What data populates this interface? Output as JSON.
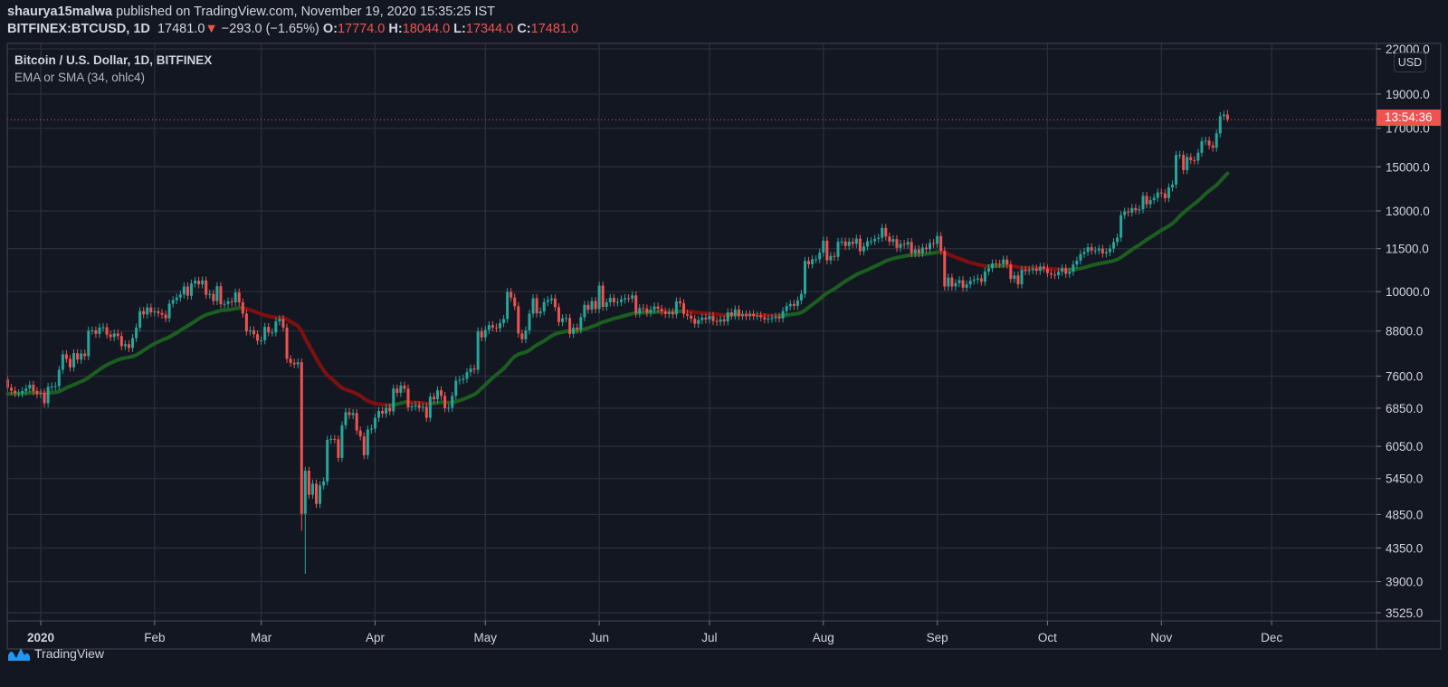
{
  "header": {
    "author": "shaurya15malwa",
    "published": "published on TradingView.com, November 19, 2020 15:35:25 IST",
    "symbol": "BITFINEX:BTCUSD, 1D",
    "last": "17481.0",
    "change": "−293.0 (−1.65%)",
    "o_label": "O:",
    "o": "17774.0",
    "h_label": "H:",
    "h": "18044.0",
    "l_label": "L:",
    "l": "17344.0",
    "c_label": "C:",
    "c": "17481.0",
    "direction_icon": "triangle-down-icon"
  },
  "legend": {
    "title": "Bitcoin / U.S. Dollar, 1D, BITFINEX",
    "indicator": "EMA or SMA (34, ohlc4)"
  },
  "price_axis": {
    "currency": "USD",
    "countdown": "13:54:36",
    "ticks": [
      "22000.0",
      "19000.0",
      "17000.0",
      "15000.0",
      "13000.0",
      "11500.0",
      "10000.0",
      "8800.0",
      "7600.0",
      "6850.0",
      "6050.0",
      "5450.0",
      "4850.0",
      "4350.0",
      "3900.0",
      "3525.0"
    ]
  },
  "time_axis": {
    "labels": [
      {
        "text": "2020",
        "date": "2020-01-01"
      },
      {
        "text": "Feb",
        "date": "2020-02-01"
      },
      {
        "text": "Mar",
        "date": "2020-03-01"
      },
      {
        "text": "Apr",
        "date": "2020-04-01"
      },
      {
        "text": "May",
        "date": "2020-05-01"
      },
      {
        "text": "Jun",
        "date": "2020-06-01"
      },
      {
        "text": "Jul",
        "date": "2020-07-01"
      },
      {
        "text": "Aug",
        "date": "2020-08-01"
      },
      {
        "text": "Sep",
        "date": "2020-09-01"
      },
      {
        "text": "Oct",
        "date": "2020-10-01"
      },
      {
        "text": "Nov",
        "date": "2020-11-01"
      },
      {
        "text": "Dec",
        "date": "2020-12-01"
      }
    ]
  },
  "branding": {
    "logo_text": "TradingView"
  },
  "chart_data": {
    "type": "candlestick",
    "y_scale": "log",
    "ylim": [
      3525,
      22000
    ],
    "xlim": [
      "2019-12-23",
      "2020-12-31"
    ],
    "grid": true,
    "start_date": "2019-12-23",
    "first_open": 7520,
    "closes": [
      7320,
      7250,
      7190,
      7190,
      7240,
      7300,
      7390,
      7240,
      7170,
      7200,
      6960,
      7340,
      7350,
      7360,
      7760,
      8160,
      8040,
      7820,
      8190,
      8020,
      8180,
      8110,
      8810,
      8820,
      8720,
      8900,
      8910,
      8700,
      8630,
      8730,
      8660,
      8380,
      8430,
      8330,
      8600,
      8900,
      9390,
      9290,
      9500,
      9350,
      9380,
      9330,
      9280,
      9170,
      9620,
      9730,
      9810,
      9910,
      10170,
      9870,
      10270,
      10360,
      10240,
      10370,
      9900,
      9930,
      9700,
      10180,
      9600,
      9610,
      9690,
      9660,
      9970,
      9660,
      9310,
      8790,
      8820,
      8710,
      8530,
      8540,
      8920,
      8760,
      8760,
      9080,
      9150,
      8900,
      8040,
      7940,
      7900,
      7950,
      4860,
      5590,
      5170,
      5360,
      5020,
      5330,
      5400,
      6180,
      6200,
      6190,
      5830,
      6480,
      6760,
      6700,
      6740,
      6370,
      6250,
      5880,
      6390,
      6410,
      6640,
      6790,
      6730,
      6860,
      6780,
      7300,
      7200,
      7370,
      7300,
      6870,
      6890,
      6920,
      6860,
      6880,
      6640,
      7110,
      7050,
      7260,
      7130,
      6850,
      6860,
      7130,
      7490,
      7510,
      7540,
      7700,
      7790,
      7760,
      8790,
      8620,
      8830,
      8970,
      8900,
      8880,
      9030,
      9150,
      9990,
      9810,
      9540,
      8730,
      8570,
      8820,
      9310,
      9790,
      9320,
      9380,
      9670,
      9730,
      9780,
      9510,
      9060,
      9170,
      9180,
      8720,
      8900,
      8840,
      9200,
      9580,
      9430,
      9700,
      9450,
      10200,
      9520,
      9660,
      9800,
      9660,
      9670,
      9750,
      9790,
      9780,
      9880,
      9320,
      9480,
      9470,
      9340,
      9430,
      9530,
      9460,
      9380,
      9300,
      9360,
      9290,
      9690,
      9630,
      9300,
      9250,
      9160,
      9010,
      9120,
      9190,
      9140,
      9240,
      9090,
      9070,
      9140,
      9080,
      9350,
      9250,
      9440,
      9240,
      9290,
      9240,
      9300,
      9240,
      9260,
      9200,
      9140,
      9160,
      9180,
      9220,
      9170,
      9390,
      9540,
      9610,
      9550,
      9720,
      9930,
      11050,
      10930,
      11110,
      11110,
      11350,
      11800,
      11070,
      11230,
      11200,
      11760,
      11770,
      11600,
      11760,
      11680,
      11880,
      11400,
      11580,
      11780,
      11780,
      11870,
      11910,
      12300,
      11960,
      11760,
      11860,
      11530,
      11680,
      11650,
      11750,
      11330,
      11470,
      11330,
      11540,
      11480,
      11710,
      11680,
      11980,
      11420,
      10170,
      10470,
      10170,
      10280,
      10380,
      10130,
      10240,
      10360,
      10400,
      10440,
      10330,
      10680,
      10790,
      10960,
      10950,
      10940,
      11100,
      10920,
      10420,
      10540,
      10240,
      10740,
      10690,
      10730,
      10780,
      10700,
      10840,
      10780,
      10620,
      10570,
      10550,
      10670,
      10790,
      10600,
      10670,
      10920,
      11060,
      11300,
      11380,
      11550,
      11430,
      11430,
      11500,
      11320,
      11370,
      11500,
      11750,
      11920,
      12820,
      12970,
      12930,
      13120,
      13030,
      13070,
      13650,
      13280,
      13460,
      13560,
      13800,
      13760,
      13550,
      14030,
      14160,
      15590,
      15590,
      14840,
      15480,
      15330,
      15310,
      15700,
      16300,
      16330,
      16080,
      15960,
      16720,
      17680,
      17774,
      17481
    ],
    "notable_lows": {
      "2020-03-12": 4600,
      "2020-03-13": 4000
    },
    "last_candle": {
      "open": 17774,
      "high": 18044,
      "low": 17344,
      "close": 17481
    },
    "current_price": 17481,
    "indicator": {
      "name": "EMA or SMA (34, ohlc4)",
      "period": 34,
      "rising_color": "#1b5e20",
      "falling_color": "#7f1010"
    },
    "colors": {
      "up": "#26a69a",
      "down": "#ef5350",
      "background": "#131722",
      "grid": "#2a2e39"
    }
  }
}
